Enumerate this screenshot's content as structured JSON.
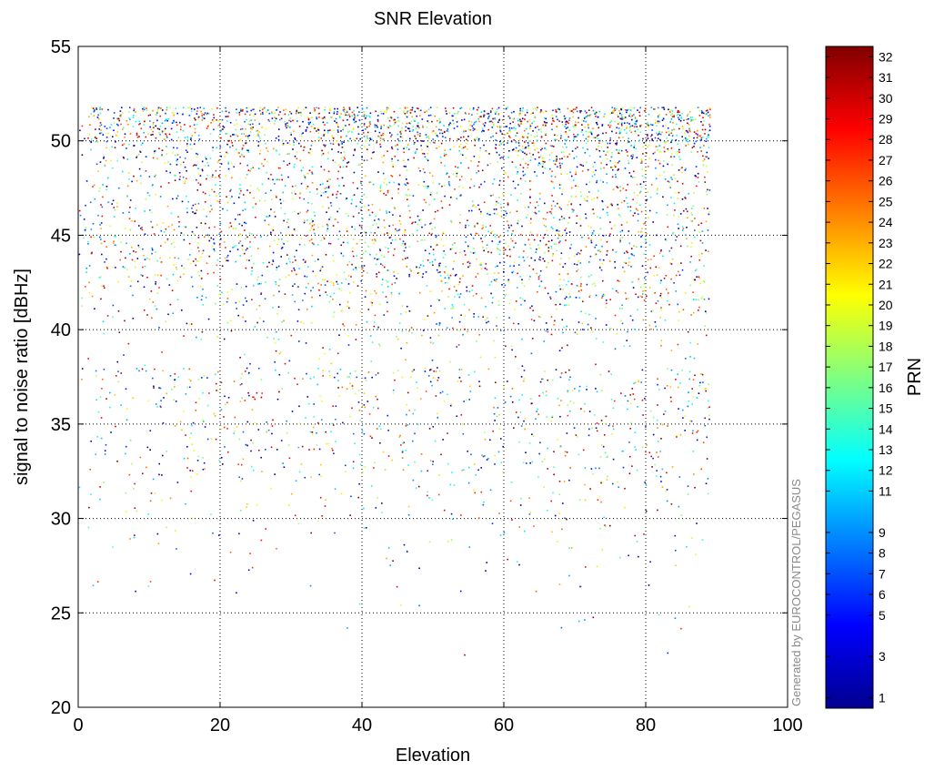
{
  "chart_data": {
    "type": "scatter",
    "title": "SNR Elevation",
    "xlabel": "Elevation",
    "ylabel": "signal to noise ratio  [dBHz]",
    "xlim": [
      0,
      100
    ],
    "ylim": [
      20,
      55
    ],
    "x_ticks": [
      "0",
      "20",
      "40",
      "60",
      "80",
      "100"
    ],
    "y_ticks": [
      "20",
      "25",
      "30",
      "35",
      "40",
      "45",
      "50",
      "55"
    ],
    "grid": true,
    "grid_style": "dotted",
    "marker": "point",
    "colorbar": {
      "label": "PRN",
      "colormap": "jet",
      "range": [
        1,
        32
      ],
      "tick_labels": [
        "1",
        "3",
        "5",
        "6",
        "7",
        "8",
        "9",
        "11",
        "12",
        "13",
        "14",
        "15",
        "16",
        "17",
        "18",
        "19",
        "20",
        "21",
        "22",
        "23",
        "24",
        "25",
        "26",
        "27",
        "28",
        "29",
        "30",
        "31",
        "32"
      ]
    },
    "credit": "Generated by EUROCONTROL/PEGASUS",
    "data_description_ranges": {
      "elevation_range": [
        0,
        89
      ],
      "snr_range": [
        20.5,
        51.8
      ],
      "upper_envelope_snr": 51.8
    }
  },
  "colors": {
    "background": "#ffffff",
    "axis": "#000000",
    "grid": "#000000",
    "credit": "#8a8a8a"
  }
}
